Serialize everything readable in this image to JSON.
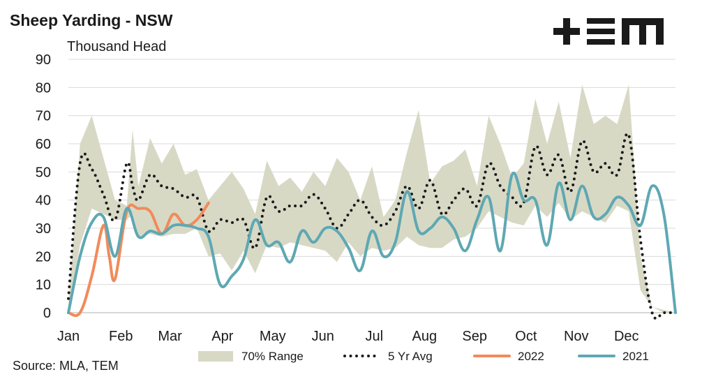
{
  "header": {
    "title": "Sheep Yarding - NSW",
    "units": "Thousand Head"
  },
  "footer": {
    "source": "Source: MLA, TEM"
  },
  "logo": {
    "text": "+ΞM",
    "color": "#1a1a1a"
  },
  "colors": {
    "range": "#d8d9c5",
    "avg": "#1a1a1a",
    "y2022": "#f28a5a",
    "y2021": "#5ea8b3",
    "grid": "#d9d9d9"
  },
  "chart_data": {
    "type": "line",
    "title": "Sheep Yarding - NSW",
    "ylabel": "Thousand Head",
    "ylim": [
      0,
      90
    ],
    "yticks": [
      0,
      10,
      20,
      30,
      40,
      50,
      60,
      70,
      80,
      90
    ],
    "xlim": [
      1,
      53
    ],
    "xtick_labels": [
      {
        "label": "Jan",
        "week": 1
      },
      {
        "label": "Feb",
        "week": 5.5
      },
      {
        "label": "Mar",
        "week": 9.7
      },
      {
        "label": "Apr",
        "week": 14.2
      },
      {
        "label": "May",
        "week": 18.5
      },
      {
        "label": "Jun",
        "week": 22.8
      },
      {
        "label": "Jul",
        "week": 27.2
      },
      {
        "label": "Aug",
        "week": 31.5
      },
      {
        "label": "Sep",
        "week": 35.8
      },
      {
        "label": "Oct",
        "week": 40.2
      },
      {
        "label": "Nov",
        "week": 44.5
      },
      {
        "label": "Dec",
        "week": 48.8
      }
    ],
    "legend": {
      "position": "bottom",
      "entries": [
        "70% Range",
        "5 Yr Avg",
        "2022",
        "2021"
      ]
    },
    "range": {
      "name": "70% Range",
      "x": [
        1,
        2,
        3,
        4,
        5,
        6,
        6.5,
        7,
        8,
        9,
        10,
        11,
        12,
        13,
        14,
        15,
        16,
        17,
        18,
        19,
        20,
        21,
        22,
        23,
        24,
        25,
        26,
        27,
        28,
        29,
        30,
        31,
        32,
        33,
        34,
        35,
        36,
        37,
        38,
        39,
        40,
        41,
        42,
        43,
        44,
        45,
        46,
        47,
        48,
        49,
        50,
        51,
        52,
        53
      ],
      "high": [
        2,
        60,
        70,
        55,
        40,
        38,
        65,
        45,
        62,
        53,
        60,
        49,
        51,
        40,
        45,
        50,
        44,
        35,
        54,
        45,
        48,
        43,
        50,
        45,
        55,
        50,
        40,
        52,
        34,
        40,
        57,
        72,
        46,
        52,
        54,
        58,
        45,
        70,
        60,
        48,
        53,
        76,
        60,
        75,
        55,
        81,
        67,
        70,
        67,
        81,
        20,
        2,
        1,
        0
      ],
      "low": [
        0,
        24,
        37,
        35,
        33,
        33,
        35,
        27,
        28,
        27,
        28,
        28,
        30,
        20,
        21,
        15,
        22,
        14,
        24,
        23,
        25,
        24,
        23,
        22,
        18,
        25,
        20,
        23,
        22,
        23,
        27,
        24,
        23,
        23,
        26,
        27,
        30,
        36,
        34,
        32,
        31,
        38,
        34,
        39,
        33,
        36,
        34,
        32,
        38,
        36,
        8,
        2,
        0,
        0
      ]
    },
    "series": [
      {
        "name": "5 Yr Avg",
        "x": [
          1,
          2,
          3,
          4,
          5,
          6,
          6.5,
          7,
          8,
          9,
          10,
          11,
          12,
          13,
          14,
          15,
          16,
          17,
          18,
          19,
          20,
          21,
          22,
          23,
          24,
          25,
          26,
          27,
          28,
          29,
          30,
          31,
          32,
          33,
          34,
          35,
          36,
          37,
          38,
          39,
          40,
          41,
          42,
          43,
          44,
          45,
          46,
          47,
          48,
          49,
          50,
          51,
          52,
          53
        ],
        "values": [
          5,
          53,
          51,
          42,
          33,
          53,
          45,
          40,
          49,
          45,
          44,
          41,
          41,
          29,
          33,
          32,
          33,
          23,
          41,
          36,
          38,
          38,
          42,
          37,
          30,
          35,
          40,
          34,
          31,
          36,
          45,
          37,
          47,
          35,
          40,
          44,
          38,
          53,
          45,
          41,
          39,
          59,
          49,
          56,
          43,
          61,
          50,
          53,
          49,
          63,
          26,
          0,
          0,
          0
        ]
      },
      {
        "name": "2022",
        "x": [
          1,
          2,
          3,
          4,
          4.5,
          5,
          6,
          7,
          8,
          9,
          10,
          11,
          12,
          13
        ],
        "values": [
          0,
          0,
          13,
          31,
          20,
          12,
          36,
          37,
          36,
          28,
          35,
          31,
          33,
          39
        ]
      },
      {
        "name": "2021",
        "x": [
          1,
          2,
          3,
          4,
          5,
          6,
          7,
          8,
          9,
          10,
          11,
          12,
          13,
          14,
          15,
          16,
          17,
          18,
          19,
          20,
          21,
          22,
          23,
          24,
          25,
          26,
          27,
          28,
          29,
          30,
          31,
          32,
          33,
          34,
          35,
          36,
          37,
          38,
          39,
          40,
          41,
          42,
          43,
          44,
          45,
          46,
          47,
          48,
          49,
          50,
          51,
          52,
          53
        ],
        "values": [
          0,
          20,
          32,
          34,
          20,
          37,
          27,
          29,
          28,
          31,
          31,
          30,
          27,
          10,
          13,
          19,
          33,
          24,
          25,
          18,
          29,
          25,
          30,
          29,
          23,
          15,
          29,
          20,
          25,
          43,
          29,
          30,
          34,
          30,
          22,
          33,
          41,
          22,
          49,
          40,
          40,
          24,
          46,
          33,
          45,
          34,
          35,
          41,
          38,
          31,
          45,
          35,
          0
        ]
      }
    ]
  }
}
